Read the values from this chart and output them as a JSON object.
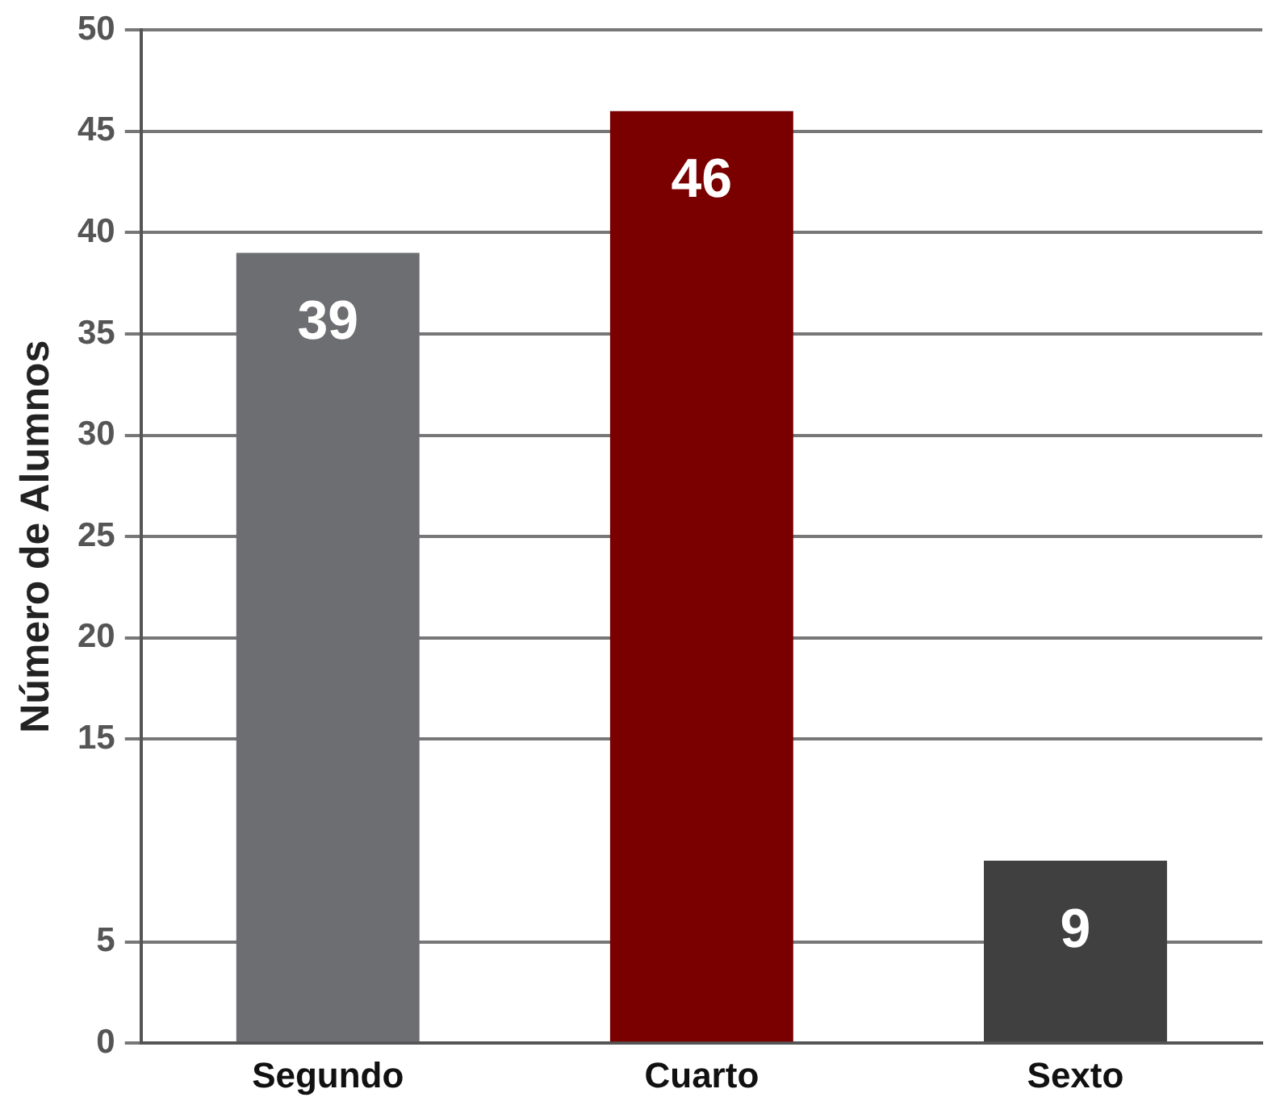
{
  "chart_data": {
    "type": "bar",
    "ylabel": "Número de Alumnos",
    "categories": [
      "Segundo",
      "Cuarto",
      "Sexto"
    ],
    "values": [
      39,
      46,
      9
    ],
    "colors": [
      "#6d6e71",
      "#7a0000",
      "#404040"
    ],
    "ylim": [
      0,
      50
    ],
    "yticks": [
      0,
      5,
      15,
      20,
      25,
      30,
      35,
      40,
      45,
      50
    ],
    "grid": "y",
    "data_labels": true,
    "legend": false
  }
}
